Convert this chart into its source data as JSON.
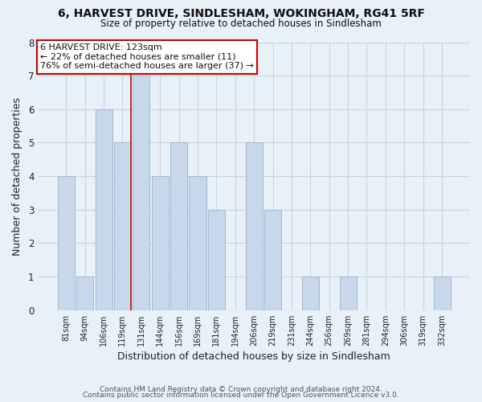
{
  "title1": "6, HARVEST DRIVE, SINDLESHAM, WOKINGHAM, RG41 5RF",
  "title2": "Size of property relative to detached houses in Sindlesham",
  "xlabel": "Distribution of detached houses by size in Sindlesham",
  "ylabel": "Number of detached properties",
  "bar_labels": [
    "81sqm",
    "94sqm",
    "106sqm",
    "119sqm",
    "131sqm",
    "144sqm",
    "156sqm",
    "169sqm",
    "181sqm",
    "194sqm",
    "206sqm",
    "219sqm",
    "231sqm",
    "244sqm",
    "256sqm",
    "269sqm",
    "281sqm",
    "294sqm",
    "306sqm",
    "319sqm",
    "332sqm"
  ],
  "bar_values": [
    4,
    1,
    6,
    5,
    7,
    4,
    5,
    4,
    3,
    0,
    5,
    3,
    0,
    1,
    0,
    1,
    0,
    0,
    0,
    0,
    1
  ],
  "bar_color": "#c8d8ea",
  "bar_edge_color": "#a0b8d0",
  "subject_line_color": "#cc0000",
  "subject_line_idx": 3,
  "annotation_title": "6 HARVEST DRIVE: 123sqm",
  "annotation_line1": "← 22% of detached houses are smaller (11)",
  "annotation_line2": "76% of semi-detached houses are larger (37) →",
  "annotation_box_color": "#ffffff",
  "annotation_box_edge": "#cc0000",
  "ylim": [
    0,
    8
  ],
  "yticks": [
    0,
    1,
    2,
    3,
    4,
    5,
    6,
    7,
    8
  ],
  "grid_color": "#c8d4e0",
  "background_color": "#e8f0f8",
  "footer1": "Contains HM Land Registry data © Crown copyright and database right 2024.",
  "footer2": "Contains public sector information licensed under the Open Government Licence v3.0."
}
